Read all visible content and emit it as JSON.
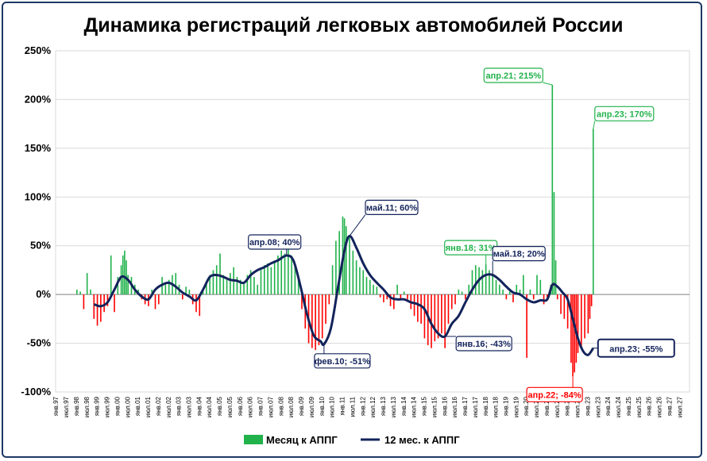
{
  "chart_data": {
    "type": "bar+line",
    "title": "Динамика регистраций легковых автомобилей России",
    "ylim": [
      -100,
      250
    ],
    "y_ticks": [
      250,
      200,
      150,
      100,
      50,
      0,
      -50,
      -100
    ],
    "y_tick_labels": [
      "250%",
      "200%",
      "150%",
      "100%",
      "50%",
      "0%",
      "-50%",
      "-100%"
    ],
    "x_tick_labels": [
      "янв.97",
      "июл.97",
      "янв.98",
      "июл.98",
      "янв.99",
      "июл.99",
      "янв.00",
      "июл.00",
      "янв.01",
      "июл.01",
      "янв.02",
      "июл.02",
      "янв.03",
      "июл.03",
      "янв.04",
      "июл.04",
      "янв.05",
      "июл.05",
      "янв.06",
      "июл.06",
      "янв.07",
      "июл.07",
      "янв.08",
      "июл.08",
      "янв.09",
      "июл.09",
      "янв.10",
      "июл.10",
      "янв.11",
      "июл.11",
      "янв.12",
      "июл.12",
      "янв.13",
      "июл.13",
      "янв.14",
      "июл.14",
      "янв.15",
      "июл.15",
      "янв.16",
      "июл.16",
      "янв.17",
      "июл.17",
      "янв.18",
      "июл.18",
      "янв.19",
      "июл.19",
      "янв.20",
      "июл.20",
      "янв.21",
      "июл.21",
      "янв.22",
      "июл.22",
      "янв.23",
      "июл.23",
      "янв.24",
      "июл.24",
      "янв.25",
      "июл.25",
      "янв.26",
      "июл.26",
      "янв.27",
      "июл.27"
    ],
    "positive_color": "#21b24b",
    "negative_color": "#ff0000",
    "line_color": "#13235b",
    "legend": {
      "position": "bottom",
      "monthly_label": "Месяц к АППГ",
      "rolling_label": "12 мес. к АППГ"
    },
    "series": [
      {
        "name": "Месяц к АППГ",
        "kind": "bar",
        "points": [
          [
            "янв.98",
            5
          ],
          [
            "мар.98",
            3
          ],
          [
            "май.98",
            -15
          ],
          [
            "июл.98",
            22
          ],
          [
            "сен.98",
            5
          ],
          [
            "ноя.98",
            -25
          ],
          [
            "янв.99",
            -32
          ],
          [
            "мар.99",
            -28
          ],
          [
            "май.99",
            -18
          ],
          [
            "июл.99",
            -12
          ],
          [
            "сен.99",
            40
          ],
          [
            "ноя.99",
            -18
          ],
          [
            "янв.00",
            18
          ],
          [
            "мар.00",
            30
          ],
          [
            "апр.00",
            40
          ],
          [
            "май.00",
            45
          ],
          [
            "июн.00",
            35
          ],
          [
            "июл.00",
            20
          ],
          [
            "сен.00",
            18
          ],
          [
            "ноя.00",
            10
          ],
          [
            "янв.01",
            5
          ],
          [
            "мар.01",
            -5
          ],
          [
            "май.01",
            -10
          ],
          [
            "июл.01",
            -12
          ],
          [
            "сен.01",
            5
          ],
          [
            "ноя.01",
            -15
          ],
          [
            "янв.02",
            -10
          ],
          [
            "мар.02",
            18
          ],
          [
            "май.02",
            10
          ],
          [
            "июл.02",
            15
          ],
          [
            "сен.02",
            20
          ],
          [
            "ноя.02",
            22
          ],
          [
            "янв.03",
            10
          ],
          [
            "мар.03",
            -5
          ],
          [
            "май.03",
            8
          ],
          [
            "июл.03",
            5
          ],
          [
            "сен.03",
            -10
          ],
          [
            "ноя.03",
            -18
          ],
          [
            "янв.04",
            -22
          ],
          [
            "мар.04",
            5
          ],
          [
            "май.04",
            12
          ],
          [
            "июл.04",
            20
          ],
          [
            "сен.04",
            25
          ],
          [
            "ноя.04",
            30
          ],
          [
            "янв.05",
            42
          ],
          [
            "мар.05",
            20
          ],
          [
            "май.05",
            15
          ],
          [
            "июл.05",
            22
          ],
          [
            "сен.05",
            28
          ],
          [
            "ноя.05",
            18
          ],
          [
            "янв.06",
            15
          ],
          [
            "мар.06",
            12
          ],
          [
            "май.06",
            20
          ],
          [
            "июл.06",
            25
          ],
          [
            "сен.06",
            18
          ],
          [
            "ноя.06",
            10
          ],
          [
            "янв.07",
            25
          ],
          [
            "мар.07",
            30
          ],
          [
            "май.07",
            32
          ],
          [
            "июл.07",
            28
          ],
          [
            "сен.07",
            35
          ],
          [
            "ноя.07",
            40
          ],
          [
            "янв.08",
            45
          ],
          [
            "мар.08",
            42
          ],
          [
            "май.08",
            55
          ],
          [
            "июл.08",
            40
          ],
          [
            "сен.08",
            30
          ],
          [
            "ноя.08",
            15
          ],
          [
            "янв.09",
            -15
          ],
          [
            "мар.09",
            -35
          ],
          [
            "май.09",
            -50
          ],
          [
            "июл.09",
            -55
          ],
          [
            "сен.09",
            -57
          ],
          [
            "ноя.09",
            -52
          ],
          [
            "янв.10",
            -45
          ],
          [
            "мар.10",
            -30
          ],
          [
            "май.10",
            -10
          ],
          [
            "июл.10",
            30
          ],
          [
            "сен.10",
            55
          ],
          [
            "ноя.10",
            65
          ],
          [
            "янв.11",
            80
          ],
          [
            "фев.11",
            78
          ],
          [
            "мар.11",
            70
          ],
          [
            "май.11",
            60
          ],
          [
            "июл.11",
            45
          ],
          [
            "сен.11",
            35
          ],
          [
            "ноя.11",
            28
          ],
          [
            "янв.12",
            25
          ],
          [
            "мар.12",
            18
          ],
          [
            "май.12",
            15
          ],
          [
            "июл.12",
            10
          ],
          [
            "сен.12",
            8
          ],
          [
            "ноя.12",
            -3
          ],
          [
            "янв.13",
            -8
          ],
          [
            "мар.13",
            -5
          ],
          [
            "май.13",
            -12
          ],
          [
            "июл.13",
            -15
          ],
          [
            "сен.13",
            10
          ],
          [
            "ноя.13",
            -5
          ],
          [
            "янв.14",
            3
          ],
          [
            "мар.14",
            -5
          ],
          [
            "май.14",
            -15
          ],
          [
            "июл.14",
            -22
          ],
          [
            "сен.14",
            -28
          ],
          [
            "ноя.14",
            -30
          ],
          [
            "янв.15",
            -45
          ],
          [
            "мар.15",
            -52
          ],
          [
            "май.15",
            -55
          ],
          [
            "июл.15",
            -48
          ],
          [
            "сен.15",
            -45
          ],
          [
            "ноя.15",
            -40
          ],
          [
            "янв.16",
            -55
          ],
          [
            "мар.16",
            -30
          ],
          [
            "май.16",
            -15
          ],
          [
            "июл.16",
            -10
          ],
          [
            "сен.16",
            5
          ],
          [
            "ноя.16",
            3
          ],
          [
            "янв.17",
            -5
          ],
          [
            "мар.17",
            10
          ],
          [
            "май.17",
            25
          ],
          [
            "июл.17",
            30
          ],
          [
            "сен.17",
            28
          ],
          [
            "ноя.17",
            25
          ],
          [
            "янв.18",
            31
          ],
          [
            "мар.18",
            25
          ],
          [
            "май.18",
            20
          ],
          [
            "июл.18",
            15
          ],
          [
            "сен.18",
            10
          ],
          [
            "ноя.18",
            5
          ],
          [
            "янв.19",
            -5
          ],
          [
            "мар.19",
            3
          ],
          [
            "май.19",
            -8
          ],
          [
            "июл.19",
            10
          ],
          [
            "сен.19",
            5
          ],
          [
            "ноя.19",
            20
          ],
          [
            "янв.20",
            -65
          ],
          [
            "мар.20",
            5
          ],
          [
            "май.20",
            -5
          ],
          [
            "июл.20",
            20
          ],
          [
            "сен.20",
            15
          ],
          [
            "ноя.20",
            -10
          ],
          [
            "янв.21",
            -5
          ],
          [
            "мар.21",
            10
          ],
          [
            "апр.21",
            215
          ],
          [
            "май.21",
            105
          ],
          [
            "июн.21",
            35
          ],
          [
            "июл.21",
            -5
          ],
          [
            "сен.21",
            -20
          ],
          [
            "ноя.21",
            -25
          ],
          [
            "янв.22",
            -35
          ],
          [
            "мар.22",
            -70
          ],
          [
            "апр.22",
            -84
          ],
          [
            "май.22",
            -80
          ],
          [
            "июн.22",
            -70
          ],
          [
            "июл.22",
            -60
          ],
          [
            "сен.22",
            -55
          ],
          [
            "ноя.22",
            -45
          ],
          [
            "янв.23",
            -40
          ],
          [
            "фев.23",
            -25
          ],
          [
            "мар.23",
            -12
          ],
          [
            "апр.23",
            170
          ]
        ]
      },
      {
        "name": "12 мес. к АППГ",
        "kind": "line",
        "points": [
          [
            "ноя.98",
            -10
          ],
          [
            "мар.99",
            -12
          ],
          [
            "июл.99",
            -8
          ],
          [
            "ноя.99",
            5
          ],
          [
            "мар.00",
            18
          ],
          [
            "июл.00",
            15
          ],
          [
            "ноя.00",
            5
          ],
          [
            "мар.01",
            -2
          ],
          [
            "июл.01",
            -5
          ],
          [
            "ноя.01",
            5
          ],
          [
            "мар.02",
            10
          ],
          [
            "июл.02",
            12
          ],
          [
            "ноя.02",
            8
          ],
          [
            "мар.03",
            2
          ],
          [
            "июл.03",
            -2
          ],
          [
            "ноя.03",
            -6
          ],
          [
            "мар.04",
            5
          ],
          [
            "июл.04",
            18
          ],
          [
            "ноя.04",
            20
          ],
          [
            "мар.05",
            18
          ],
          [
            "июл.05",
            15
          ],
          [
            "ноя.05",
            14
          ],
          [
            "мар.06",
            12
          ],
          [
            "июл.06",
            20
          ],
          [
            "ноя.06",
            25
          ],
          [
            "мар.07",
            28
          ],
          [
            "июл.07",
            32
          ],
          [
            "ноя.07",
            35
          ],
          [
            "апр.08",
            40
          ],
          [
            "авг.08",
            35
          ],
          [
            "дек.08",
            10
          ],
          [
            "апр.09",
            -20
          ],
          [
            "авг.09",
            -42
          ],
          [
            "дек.09",
            -48
          ],
          [
            "фев.10",
            -51
          ],
          [
            "июн.10",
            -35
          ],
          [
            "окт.10",
            5
          ],
          [
            "фев.11",
            45
          ],
          [
            "май.11",
            60
          ],
          [
            "сен.11",
            48
          ],
          [
            "янв.12",
            32
          ],
          [
            "май.12",
            20
          ],
          [
            "сен.12",
            12
          ],
          [
            "янв.13",
            5
          ],
          [
            "май.13",
            -3
          ],
          [
            "сен.13",
            -5
          ],
          [
            "янв.14",
            -5
          ],
          [
            "май.14",
            -8
          ],
          [
            "сен.14",
            -10
          ],
          [
            "янв.15",
            -15
          ],
          [
            "май.15",
            -30
          ],
          [
            "сен.15",
            -40
          ],
          [
            "янв.16",
            -43
          ],
          [
            "май.16",
            -30
          ],
          [
            "сен.16",
            -22
          ],
          [
            "янв.17",
            -8
          ],
          [
            "май.17",
            5
          ],
          [
            "сен.17",
            15
          ],
          [
            "янв.18",
            20
          ],
          [
            "май.18",
            20
          ],
          [
            "сен.18",
            15
          ],
          [
            "янв.19",
            8
          ],
          [
            "май.19",
            2
          ],
          [
            "сен.19",
            0
          ],
          [
            "янв.20",
            -5
          ],
          [
            "май.20",
            -8
          ],
          [
            "сен.20",
            -6
          ],
          [
            "янв.21",
            -5
          ],
          [
            "апр.21",
            10
          ],
          [
            "июл.21",
            8
          ],
          [
            "окт.21",
            2
          ],
          [
            "янв.22",
            -5
          ],
          [
            "апр.22",
            -25
          ],
          [
            "июл.22",
            -45
          ],
          [
            "окт.22",
            -58
          ],
          [
            "янв.23",
            -62
          ],
          [
            "апр.23",
            -55
          ]
        ]
      }
    ],
    "annotations": [
      {
        "text": "апр.08; 40%",
        "series": "12 мес. к АППГ",
        "x": "апр.08",
        "y": 40,
        "color": "#13235b"
      },
      {
        "text": "фев.10; -51%",
        "series": "12 мес. к АППГ",
        "x": "фев.10",
        "y": -51,
        "color": "#13235b"
      },
      {
        "text": "май.11; 60%",
        "series": "12 мес. к АППГ",
        "x": "май.11",
        "y": 60,
        "color": "#13235b"
      },
      {
        "text": "янв.16; -43%",
        "series": "12 мес. к АППГ",
        "x": "янв.16",
        "y": -43,
        "color": "#13235b"
      },
      {
        "text": "янв.18; 31%",
        "series": "Месяц к АППГ",
        "x": "янв.18",
        "y": 31,
        "color": "#21b24b"
      },
      {
        "text": "май.18; 20%",
        "series": "12 мес. к АППГ",
        "x": "май.18",
        "y": 20,
        "color": "#13235b"
      },
      {
        "text": "апр.21; 215%",
        "series": "Месяц к АППГ",
        "x": "апр.21",
        "y": 215,
        "color": "#21b24b"
      },
      {
        "text": "апр.23; 170%",
        "series": "Месяц к АППГ",
        "x": "апр.23",
        "y": 170,
        "color": "#21b24b"
      },
      {
        "text": "апр.22; -84%",
        "series": "Месяц к АППГ",
        "x": "апр.22",
        "y": -84,
        "color": "#ff0000"
      },
      {
        "text": "апр.23; -55%",
        "series": "12 мес. к АППГ",
        "x": "апр.23",
        "y": -55,
        "color": "#13235b",
        "emphasis": true
      }
    ]
  }
}
